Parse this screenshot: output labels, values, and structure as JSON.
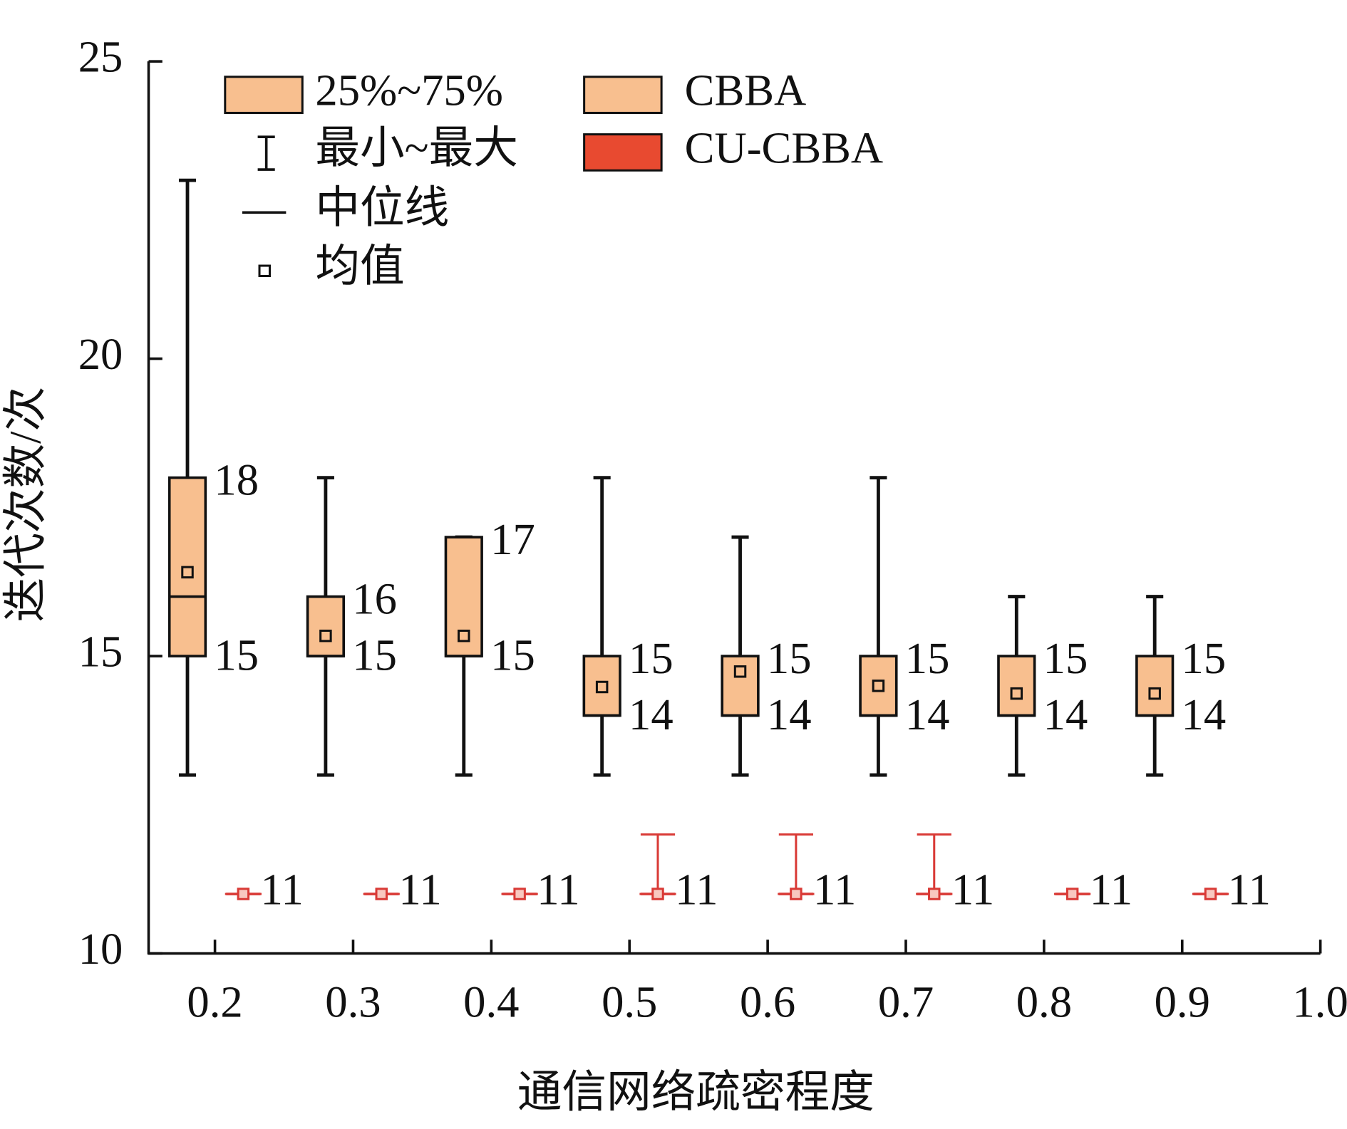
{
  "chart_data": {
    "type": "box",
    "x_label": "通信网络疏密程度",
    "y_label": "迭代次数/次",
    "x": [
      0.2,
      0.3,
      0.4,
      0.5,
      0.6,
      0.7,
      0.8,
      0.9
    ],
    "xlim": [
      0.152,
      1.0
    ],
    "xticks": [
      0.2,
      0.3,
      0.4,
      0.5,
      0.6,
      0.7,
      0.8,
      0.9,
      {
        "value": 1.0,
        "label": "1.0"
      }
    ],
    "ylim": [
      10,
      25
    ],
    "yticks": [
      10,
      15,
      20,
      25
    ],
    "legend": {
      "box": "25%~75%",
      "whisker": "最小~最大",
      "median": "中位线",
      "mean": "均值"
    },
    "series": [
      {
        "name": "CBBA",
        "color": "#f8bf8f",
        "min": [
          13,
          13,
          13,
          13,
          13,
          13,
          13,
          13
        ],
        "q1": [
          15,
          15,
          15,
          14,
          14,
          14,
          14,
          14
        ],
        "median": [
          16,
          15,
          15,
          14,
          14,
          14,
          14,
          14
        ],
        "q3": [
          18,
          16,
          17,
          15,
          15,
          15,
          15,
          15
        ],
        "max": [
          23,
          18,
          17,
          18,
          17,
          18,
          16,
          16
        ],
        "mean": [
          16.41,
          15.34,
          15.34,
          14.48,
          14.74,
          14.5,
          14.37,
          14.37
        ]
      },
      {
        "name": "CU-CBBA",
        "color": "#e84a30",
        "min": [
          11,
          11,
          11,
          11,
          11,
          11,
          11,
          11
        ],
        "q1": [
          11,
          11,
          11,
          11,
          11,
          11,
          11,
          11
        ],
        "median": [
          11,
          11,
          11,
          11,
          11,
          11,
          11,
          11
        ],
        "q3": [
          11,
          11,
          11,
          11,
          11,
          11,
          11,
          11
        ],
        "max": [
          11,
          11,
          11,
          12,
          12,
          12,
          11,
          11
        ],
        "mean": [
          11,
          11,
          11,
          11,
          11,
          11,
          11,
          11
        ]
      }
    ]
  }
}
